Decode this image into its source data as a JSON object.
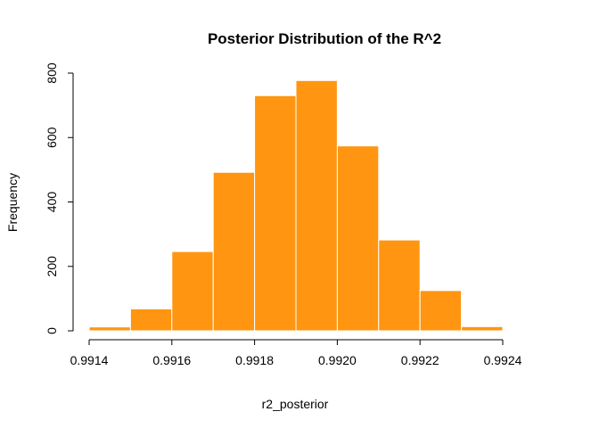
{
  "chart_data": {
    "type": "bar",
    "title": "Posterior Distribution of the R^2",
    "xlabel": "r2_posterior",
    "ylabel": "Frequency",
    "bins": [
      {
        "start": 0.9914,
        "end": 0.9915,
        "count": 12
      },
      {
        "start": 0.9915,
        "end": 0.9916,
        "count": 68
      },
      {
        "start": 0.9916,
        "end": 0.9917,
        "count": 246
      },
      {
        "start": 0.9917,
        "end": 0.9918,
        "count": 492
      },
      {
        "start": 0.9918,
        "end": 0.9919,
        "count": 730
      },
      {
        "start": 0.9919,
        "end": 0.992,
        "count": 777
      },
      {
        "start": 0.992,
        "end": 0.9921,
        "count": 574
      },
      {
        "start": 0.9921,
        "end": 0.9922,
        "count": 282
      },
      {
        "start": 0.9922,
        "end": 0.9923,
        "count": 125
      },
      {
        "start": 0.9923,
        "end": 0.9924,
        "count": 13
      }
    ],
    "xlim": [
      0.9914,
      0.9924
    ],
    "ylim": [
      0,
      800
    ],
    "x_ticks": [
      "0.9914",
      "0.9916",
      "0.9918",
      "0.9920",
      "0.9922",
      "0.9924"
    ],
    "y_ticks": [
      "0",
      "200",
      "400",
      "600",
      "800"
    ],
    "bar_color": "#FF9510",
    "bar_border_color": "#FFFFFF",
    "grid": false,
    "legend": false
  }
}
